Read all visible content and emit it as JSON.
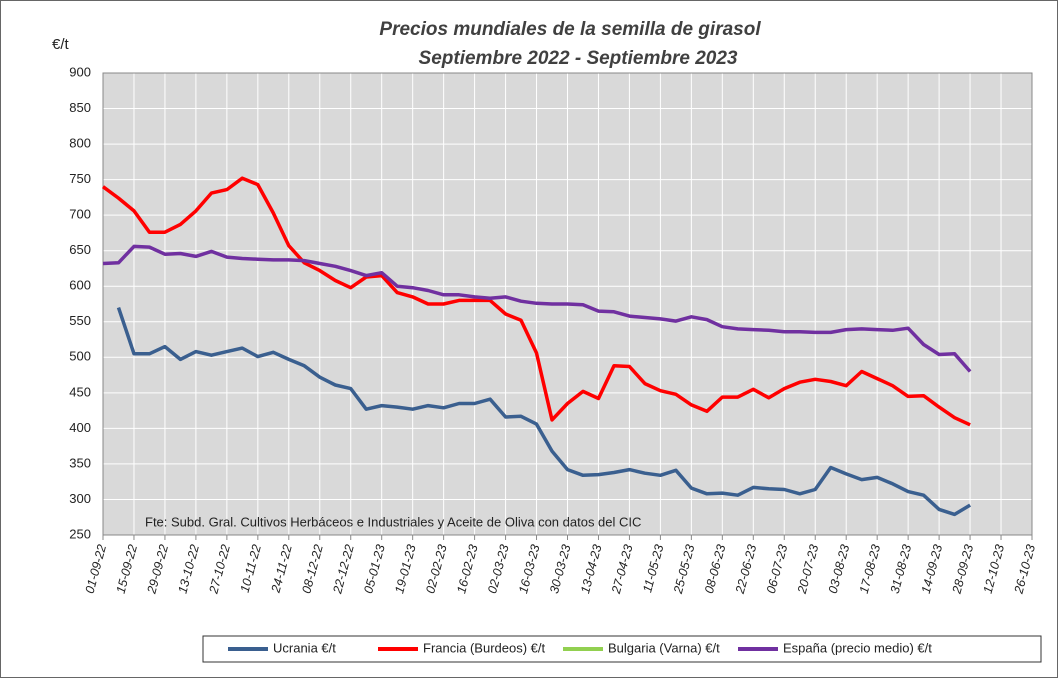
{
  "chart_data": {
    "type": "line",
    "title": "Precios mundiales de la semilla de girasol",
    "subtitle": "Septiembre 2022 -  Septiembre 2023",
    "y_label": "€/t",
    "annotation": "Fte: Subd. Gral. Cultivos Herbáceos e Industriales y Aceite de Oliva con datos del CIC",
    "grid": true,
    "legend": "bottom",
    "x": [
      "2022-09-01",
      "2022-09-08",
      "2022-09-15",
      "2022-09-22",
      "2022-09-29",
      "2022-10-06",
      "2022-10-13",
      "2022-10-20",
      "2022-10-27",
      "2022-11-03",
      "2022-11-10",
      "2022-11-17",
      "2022-11-24",
      "2022-12-01",
      "2022-12-08",
      "2022-12-15",
      "2022-12-22",
      "2022-12-29",
      "2023-01-05",
      "2023-01-12",
      "2023-01-19",
      "2023-01-26",
      "2023-02-02",
      "2023-02-09",
      "2023-02-16",
      "2023-02-23",
      "2023-03-02",
      "2023-03-09",
      "2023-03-16",
      "2023-03-23",
      "2023-03-30",
      "2023-04-06",
      "2023-04-13",
      "2023-04-20",
      "2023-04-27",
      "2023-05-04",
      "2023-05-11",
      "2023-05-18",
      "2023-05-25",
      "2023-06-01",
      "2023-06-08",
      "2023-06-15",
      "2023-06-22",
      "2023-06-29",
      "2023-07-06",
      "2023-07-13",
      "2023-07-20",
      "2023-07-27",
      "2023-08-03",
      "2023-08-10",
      "2023-08-17",
      "2023-08-24",
      "2023-08-31",
      "2023-09-07",
      "2023-09-14",
      "2023-09-21",
      "2023-09-28"
    ],
    "xlim": [
      "2022-09-01",
      "2023-10-26"
    ],
    "xticks": [
      {
        "value": "2022-09-01",
        "label": "01-09-22"
      },
      {
        "value": "2022-09-15",
        "label": "15-09-22"
      },
      {
        "value": "2022-09-29",
        "label": "29-09-22"
      },
      {
        "value": "2022-10-13",
        "label": "13-10-22"
      },
      {
        "value": "2022-10-27",
        "label": "27-10-22"
      },
      {
        "value": "2022-11-10",
        "label": "10-11-22"
      },
      {
        "value": "2022-11-24",
        "label": "24-11-22"
      },
      {
        "value": "2022-12-08",
        "label": "08-12-22"
      },
      {
        "value": "2022-12-22",
        "label": "22-12-22"
      },
      {
        "value": "2023-01-05",
        "label": "05-01-23"
      },
      {
        "value": "2023-01-19",
        "label": "19-01-23"
      },
      {
        "value": "2023-02-02",
        "label": "02-02-23"
      },
      {
        "value": "2023-02-16",
        "label": "16-02-23"
      },
      {
        "value": "2023-03-02",
        "label": "02-03-23"
      },
      {
        "value": "2023-03-16",
        "label": "16-03-23"
      },
      {
        "value": "2023-03-30",
        "label": "30-03-23"
      },
      {
        "value": "2023-04-13",
        "label": "13-04-23"
      },
      {
        "value": "2023-04-27",
        "label": "27-04-23"
      },
      {
        "value": "2023-05-11",
        "label": "11-05-23"
      },
      {
        "value": "2023-05-25",
        "label": "25-05-23"
      },
      {
        "value": "2023-06-08",
        "label": "08-06-23"
      },
      {
        "value": "2023-06-22",
        "label": "22-06-23"
      },
      {
        "value": "2023-07-06",
        "label": "06-07-23"
      },
      {
        "value": "2023-07-20",
        "label": "20-07-23"
      },
      {
        "value": "2023-08-03",
        "label": "03-08-23"
      },
      {
        "value": "2023-08-17",
        "label": "17-08-23"
      },
      {
        "value": "2023-08-31",
        "label": "31-08-23"
      },
      {
        "value": "2023-09-14",
        "label": "14-09-23"
      },
      {
        "value": "2023-09-28",
        "label": "28-09-23"
      },
      {
        "value": "2023-10-12",
        "label": "12-10-23"
      },
      {
        "value": "2023-10-26",
        "label": "26-10-23"
      }
    ],
    "ylim": [
      250,
      900
    ],
    "yticks": [
      250,
      300,
      350,
      400,
      450,
      500,
      550,
      600,
      650,
      700,
      750,
      800,
      850,
      900
    ],
    "series": [
      {
        "name": "Ucrania €/t",
        "color": "#3a5f8f",
        "values": [
          null,
          570,
          505,
          505,
          515,
          497,
          508,
          503,
          508,
          513,
          501,
          507,
          497,
          488,
          472,
          461,
          456,
          427,
          432,
          430,
          427,
          432,
          429,
          435,
          435,
          441,
          416,
          417,
          406,
          368,
          342,
          334,
          335,
          338,
          342,
          337,
          334,
          341,
          316,
          308,
          309,
          306,
          317,
          315,
          314,
          308,
          314,
          345,
          336,
          328,
          331,
          322,
          311,
          306,
          286,
          279,
          292
        ]
      },
      {
        "name": "Francia (Burdeos) €/t",
        "color": "#ff0000",
        "values": [
          740,
          724,
          706,
          676,
          676,
          687,
          706,
          731,
          736,
          752,
          743,
          703,
          657,
          633,
          622,
          608,
          598,
          613,
          615,
          591,
          585,
          575,
          575,
          580,
          580,
          580,
          561,
          552,
          506,
          412,
          435,
          452,
          442,
          488,
          487,
          463,
          453,
          448,
          433,
          424,
          444,
          444,
          455,
          443,
          456,
          465,
          469,
          466,
          460,
          480,
          470,
          460,
          445,
          446,
          430,
          415,
          405
        ]
      },
      {
        "name": "Bulgaria (Varna) €/t",
        "color": "#92d050",
        "values": [
          null,
          null,
          null,
          null,
          null,
          null,
          null,
          null,
          null,
          null,
          null,
          null,
          null,
          null,
          null,
          null,
          null,
          null,
          null,
          null,
          null,
          null,
          null,
          null,
          null,
          null,
          null,
          null,
          null,
          null,
          null,
          null,
          null,
          null,
          null,
          null,
          null,
          null,
          null,
          null,
          null,
          null,
          null,
          null,
          null,
          null,
          null,
          null,
          null,
          null,
          null,
          null,
          null,
          null,
          null,
          null,
          null
        ]
      },
      {
        "name": "España (precio medio) €/t",
        "color": "#7030a0",
        "values": [
          632,
          633,
          656,
          655,
          645,
          646,
          642,
          649,
          641,
          639,
          638,
          637,
          637,
          636,
          632,
          628,
          622,
          615,
          619,
          600,
          598,
          594,
          588,
          588,
          585,
          583,
          585,
          579,
          576,
          575,
          575,
          574,
          565,
          564,
          558,
          556,
          554,
          551,
          557,
          553,
          543,
          540,
          539,
          538,
          536,
          536,
          535,
          535,
          539,
          540,
          539,
          538,
          541,
          518,
          504,
          505,
          480
        ]
      }
    ]
  }
}
